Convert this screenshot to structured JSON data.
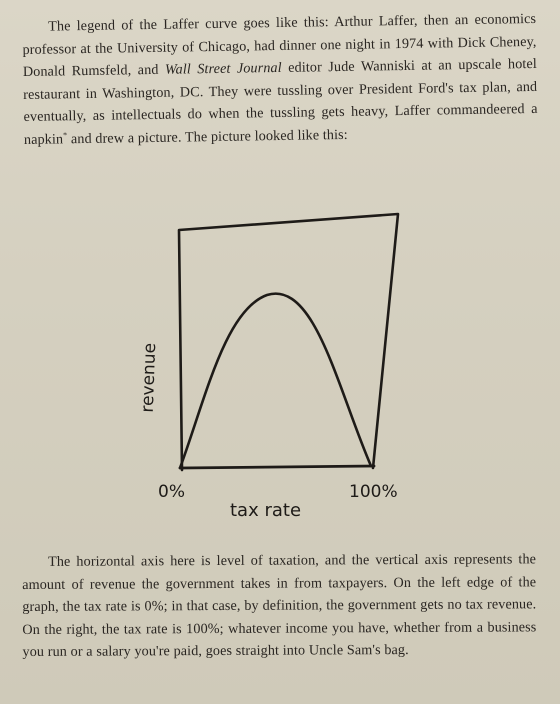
{
  "paragraph1": {
    "indent": true,
    "before_italic": "The legend of the Laffer curve goes like this: Arthur Laffer, then an economics professor at the University of Chicago, had dinner one night in 1974 with Dick Cheney, Donald Rumsfeld, and",
    "italic": "Wall Street Journal",
    "after_italic": "editor Jude Wanniski at an upscale hotel restaurant in Washington, DC. They were tussling over President Ford's tax plan, and eventually, as intellectuals do when the tussling gets heavy, Laffer commandeered a napkin",
    "footnote_mark": "*",
    "ending": "and drew a picture. The picture looked like this:"
  },
  "figure": {
    "y_label": "revenue",
    "x_label": "tax rate",
    "x_left_label": "0%",
    "x_right_label": "100%"
  },
  "paragraph2": {
    "text": "The horizontal axis here is level of taxation, and the vertical axis represents the amount of revenue the government takes in from taxpayers. On the left edge of the graph, the tax rate is 0%; in that case, by definition, the government gets no tax revenue. On the right, the tax rate is 100%; whatever income you have, whether from a business you run or a salary you're paid, goes straight into Uncle Sam's bag."
  }
}
